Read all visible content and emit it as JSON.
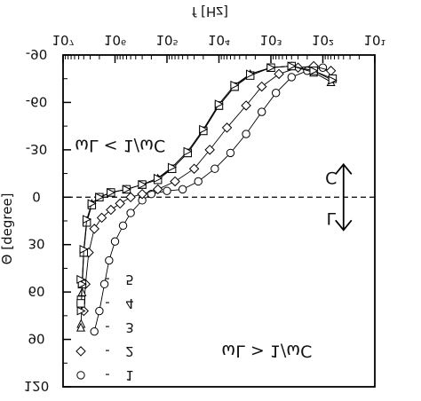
{
  "chart_data": {
    "type": "scatter",
    "mirrored": true,
    "xlabel": "f [Hz]",
    "ylabel": "Θ [degree]",
    "xscale": "log",
    "xlim": [
      10,
      10000000.0
    ],
    "ylim": [
      -90,
      120
    ],
    "y_inverted": true,
    "x_ticks": [
      "10¹",
      "10²",
      "10³",
      "10⁴",
      "10⁵",
      "10⁶",
      "10⁷"
    ],
    "y_ticks": [
      "-90",
      "-60",
      "-30",
      "0",
      "30",
      "60",
      "90",
      "120"
    ],
    "annotations": [
      {
        "text": "ωL < 1/ωC",
        "where": "upper-right"
      },
      {
        "text": "ωL > 1/ωC",
        "where": "lower-left"
      },
      {
        "text": "C",
        "where": "above zero line"
      },
      {
        "text": "L",
        "where": "below zero line"
      }
    ],
    "legend": {
      "placement": "bottom-left",
      "dash": "-",
      "items": [
        {
          "label": "1",
          "marker": "circle"
        },
        {
          "label": "2",
          "marker": "diamond"
        },
        {
          "label": "3",
          "marker": "triangle-down"
        },
        {
          "label": "4",
          "marker": "square"
        },
        {
          "label": "5",
          "marker": "triangle-left"
        }
      ]
    },
    "series": [
      {
        "marker": "circle",
        "points": [
          [
            100,
            -82
          ],
          [
            200,
            -80
          ],
          [
            400,
            -76
          ],
          [
            800,
            -66
          ],
          [
            1500,
            -54
          ],
          [
            3000,
            -40
          ],
          [
            6000,
            -28
          ],
          [
            12000,
            -18
          ],
          [
            25000,
            -10
          ],
          [
            50000,
            -5
          ],
          [
            100000,
            -4
          ],
          [
            200000,
            -2
          ],
          [
            300000,
            2
          ],
          [
            500000,
            10
          ],
          [
            700000,
            18
          ],
          [
            1000000,
            28
          ],
          [
            1300000,
            40
          ],
          [
            1600000,
            55
          ],
          [
            2000000,
            72
          ],
          [
            2500000,
            85
          ]
        ]
      },
      {
        "marker": "diamond",
        "points": [
          [
            70,
            -80
          ],
          [
            150,
            -83
          ],
          [
            300,
            -82
          ],
          [
            700,
            -78
          ],
          [
            1500,
            -70
          ],
          [
            3000,
            -58
          ],
          [
            7000,
            -44
          ],
          [
            15000,
            -30
          ],
          [
            30000,
            -18
          ],
          [
            70000,
            -10
          ],
          [
            150000,
            -5
          ],
          [
            300000,
            -2
          ],
          [
            500000,
            0
          ],
          [
            800000,
            4
          ],
          [
            1200000,
            8
          ],
          [
            1800000,
            13
          ],
          [
            2500000,
            20
          ],
          [
            3200000,
            35
          ],
          [
            3700000,
            55
          ],
          [
            4000000,
            72
          ]
        ]
      },
      {
        "marker": "triangle-down",
        "points": [
          [
            70,
            -73
          ],
          [
            150,
            -79
          ],
          [
            400,
            -83
          ],
          [
            1000,
            -82
          ],
          [
            2500,
            -78
          ],
          [
            5000,
            -70
          ],
          [
            10000,
            -58
          ],
          [
            20000,
            -42
          ],
          [
            40000,
            -28
          ],
          [
            80000,
            -18
          ],
          [
            150000,
            -12
          ],
          [
            300000,
            -8
          ],
          [
            600000,
            -5
          ],
          [
            1200000,
            -3
          ],
          [
            2000000,
            0
          ],
          [
            2800000,
            4
          ],
          [
            3500000,
            15
          ],
          [
            4000000,
            35
          ],
          [
            4300000,
            60
          ],
          [
            4500000,
            80
          ]
        ]
      },
      {
        "marker": "square",
        "points": [
          [
            65,
            -75
          ],
          [
            150,
            -80
          ],
          [
            400,
            -83
          ],
          [
            1000,
            -82
          ],
          [
            2500,
            -77
          ],
          [
            5000,
            -70
          ],
          [
            10000,
            -58
          ],
          [
            20000,
            -42
          ],
          [
            40000,
            -28
          ],
          [
            80000,
            -18
          ],
          [
            150000,
            -11
          ],
          [
            300000,
            -8
          ],
          [
            600000,
            -5
          ],
          [
            1200000,
            -3
          ],
          [
            2000000,
            0
          ],
          [
            2800000,
            5
          ],
          [
            3500000,
            16
          ],
          [
            4000000,
            35
          ],
          [
            4300000,
            55
          ],
          [
            4500000,
            65
          ]
        ]
      },
      {
        "marker": "triangle-left",
        "points": [
          [
            65,
            -74
          ],
          [
            150,
            -80
          ],
          [
            400,
            -83
          ],
          [
            1000,
            -82
          ],
          [
            2500,
            -78
          ],
          [
            5000,
            -71
          ],
          [
            10000,
            -59
          ],
          [
            20000,
            -43
          ],
          [
            40000,
            -29
          ],
          [
            80000,
            -19
          ],
          [
            150000,
            -12
          ],
          [
            300000,
            -8
          ],
          [
            600000,
            -5
          ],
          [
            1200000,
            -3
          ],
          [
            2000000,
            0
          ],
          [
            2800000,
            4
          ],
          [
            3500000,
            14
          ],
          [
            4000000,
            33
          ],
          [
            4300000,
            55
          ],
          [
            4500000,
            72
          ]
        ]
      }
    ]
  }
}
